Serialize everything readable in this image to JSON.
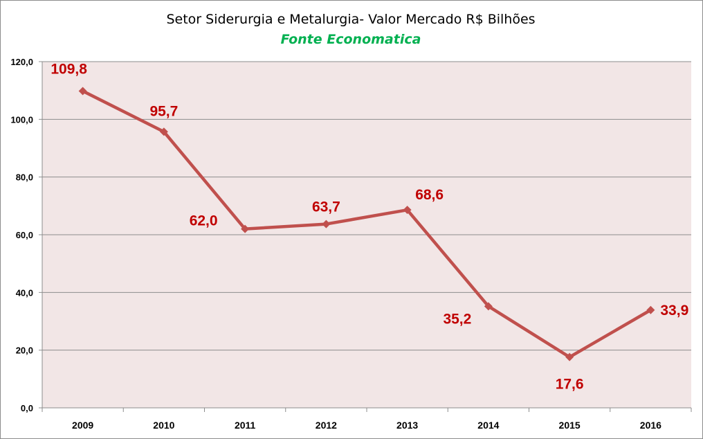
{
  "chart_data": {
    "type": "line",
    "title": "Setor Siderurgia e Metalurgia- Valor Mercado R$ Bilhões",
    "subtitle": "Fonte Economatica",
    "xlabel": "",
    "ylabel": "",
    "categories": [
      "2009",
      "2010",
      "2011",
      "2012",
      "2013",
      "2014",
      "2015",
      "2016"
    ],
    "series": [
      {
        "name": "Valor Mercado R$ Bilhões",
        "values": [
          109.8,
          95.7,
          62.0,
          63.7,
          68.6,
          35.2,
          17.6,
          33.9
        ],
        "labels": [
          "109,8",
          "95,7",
          "62,0",
          "63,7",
          "68,6",
          "35,2",
          "17,6",
          "33,9"
        ]
      }
    ],
    "ylim": [
      0,
      120
    ],
    "yticks": [
      0,
      20,
      40,
      60,
      80,
      100,
      120
    ],
    "ytick_labels": [
      "0,0",
      "20,0",
      "40,0",
      "60,0",
      "80,0",
      "100,0",
      "120,0"
    ],
    "grid": true,
    "legend": "none"
  },
  "colors": {
    "line": "#c0504d",
    "label": "#c00000",
    "subtitle": "#00b050",
    "plot_background": "#f2e6e6",
    "grid": "#8c8c8c"
  }
}
